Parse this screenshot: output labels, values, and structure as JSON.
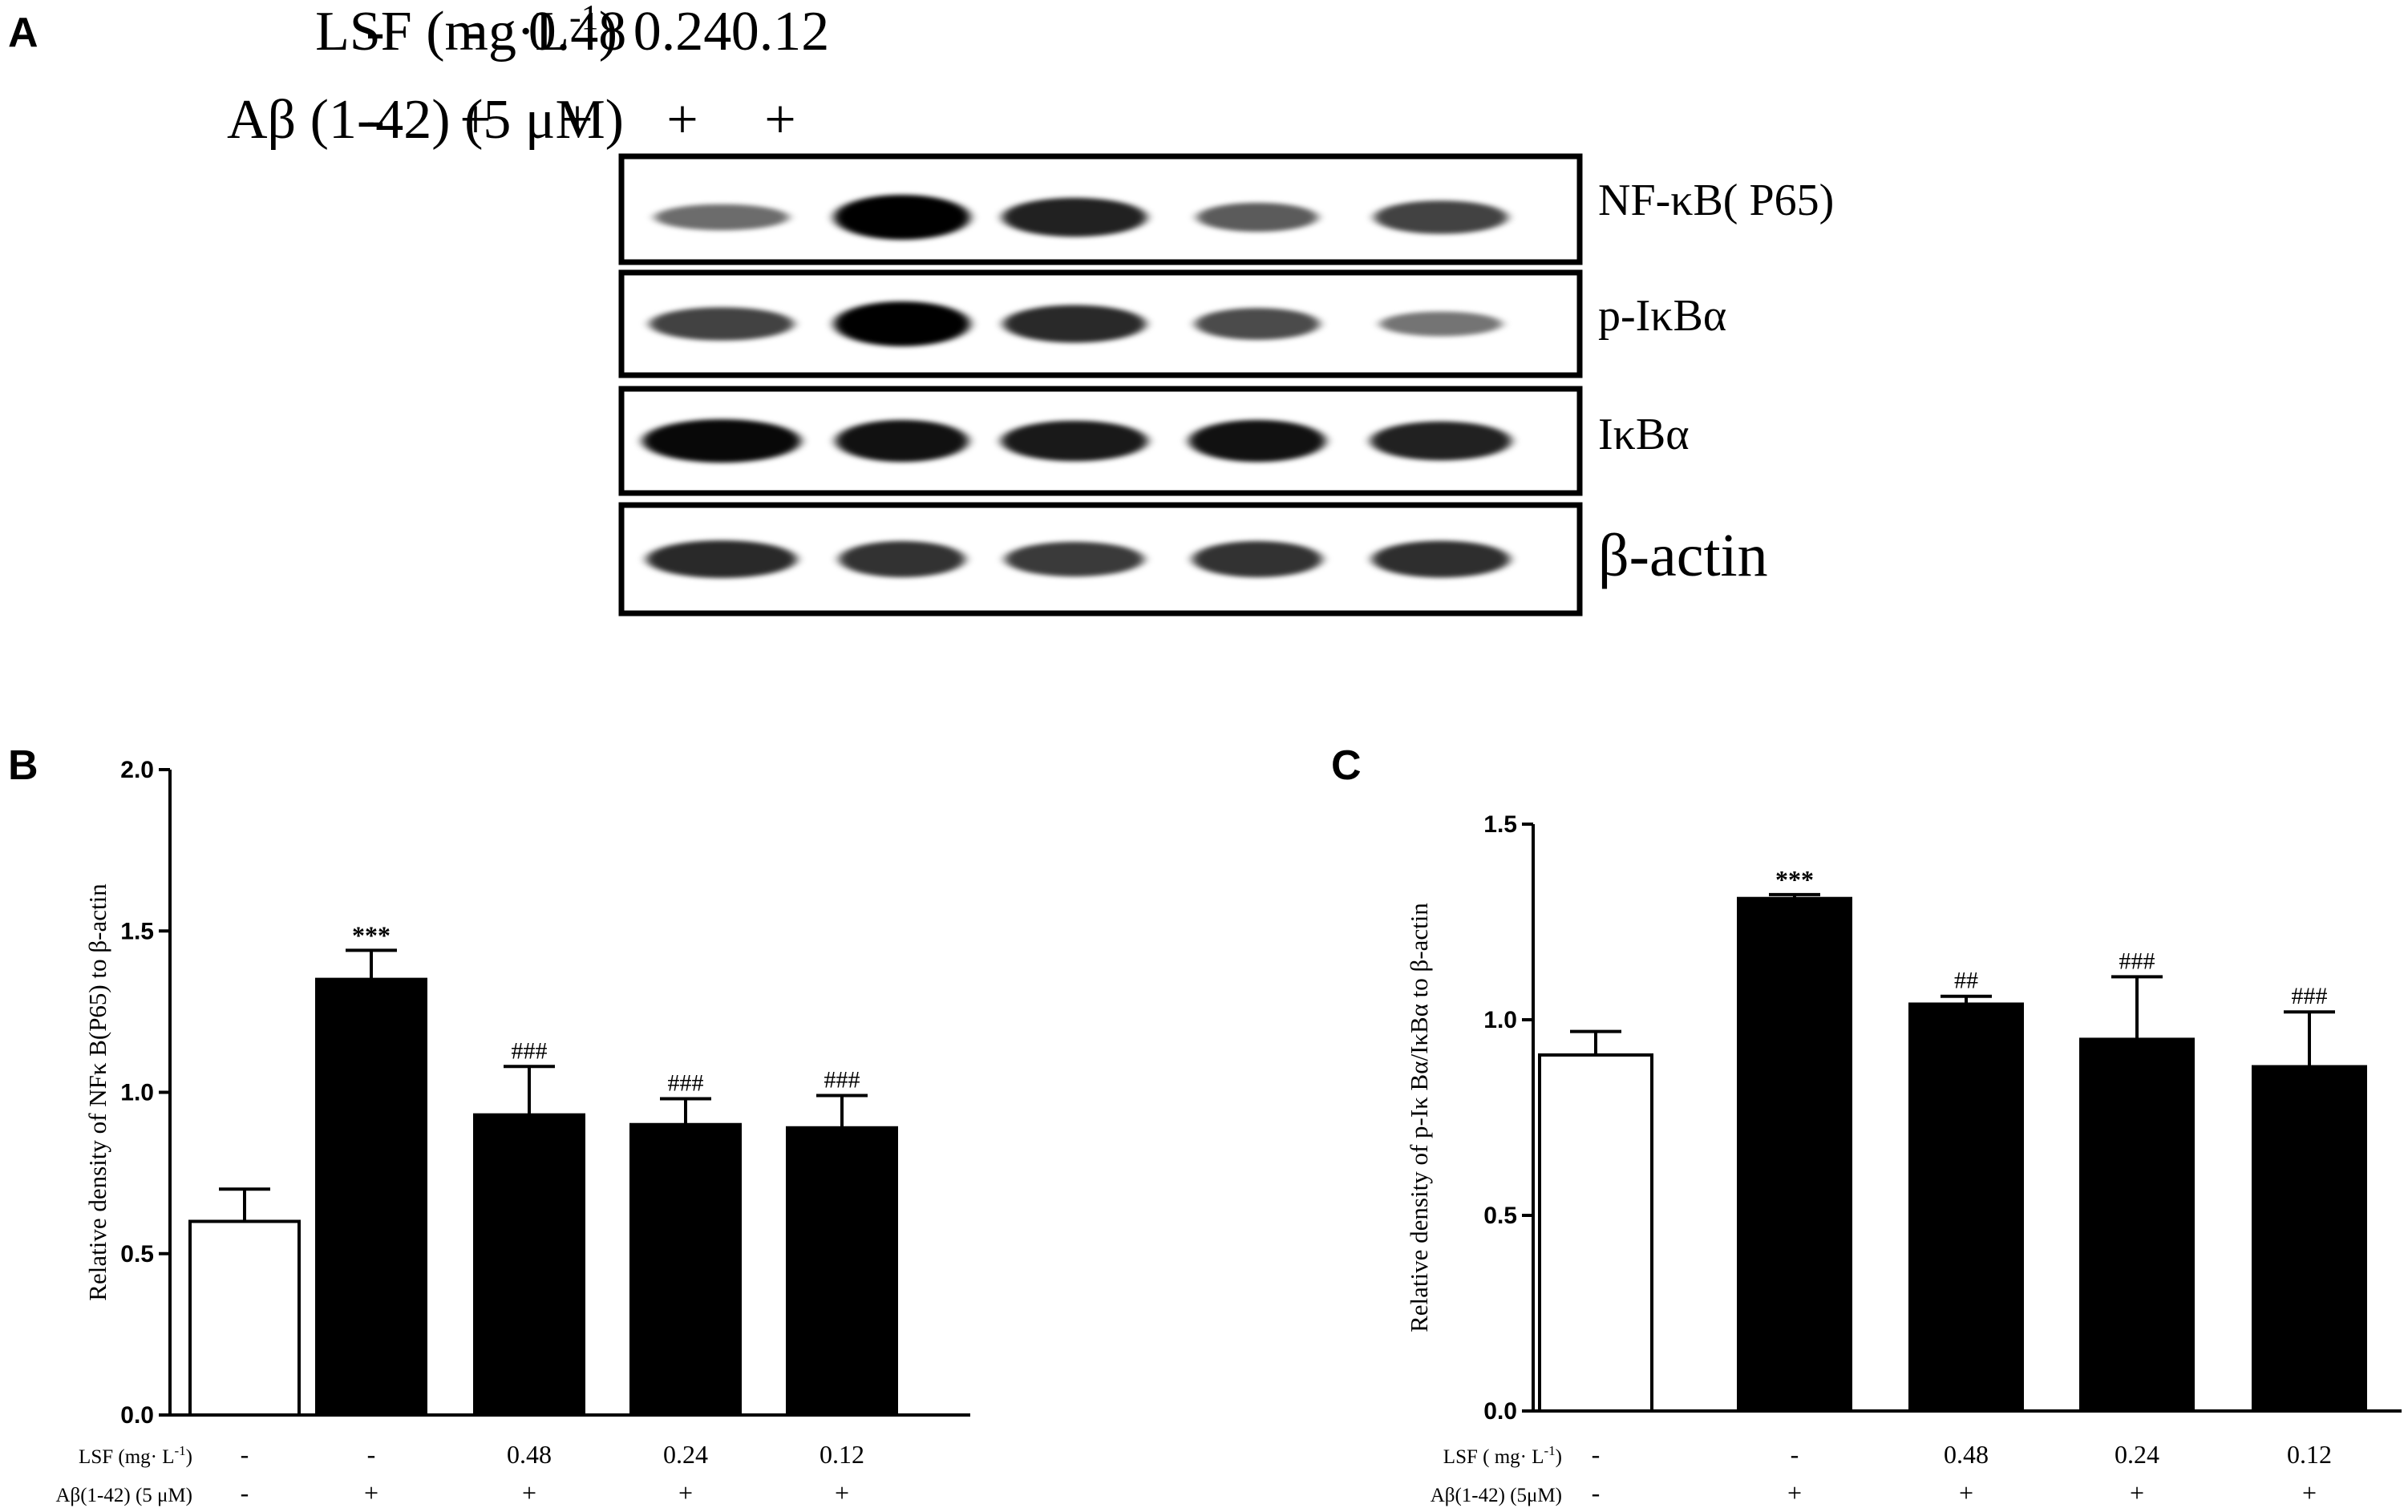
{
  "figure": {
    "panel_a": {
      "letter": "A",
      "lsf_label": "LSF (mg·L",
      "lsf_label_sup": "-1",
      "lsf_label_close": ")",
      "abeta_label": "Aβ (1-42) (5 μM)",
      "lsf_values": [
        "-",
        "-",
        "0.48",
        "0.24",
        "0.12"
      ],
      "abeta_values": [
        "-",
        "+",
        "+",
        "+",
        "+"
      ],
      "blots": [
        {
          "label": "NF-κB( P65)",
          "bands": [
            0.35,
            1.0,
            0.8,
            0.45,
            0.6
          ]
        },
        {
          "label": "p-IκBα",
          "bands": [
            0.6,
            1.0,
            0.75,
            0.55,
            0.3
          ]
        },
        {
          "label": "IκBα",
          "bands": [
            0.95,
            0.9,
            0.85,
            0.9,
            0.8
          ]
        },
        {
          "label": "β-actin",
          "bands": [
            0.75,
            0.7,
            0.65,
            0.7,
            0.72
          ]
        }
      ]
    },
    "panel_b": {
      "letter": "B",
      "ylabel": "Relative density of NFκ B(P65) to β-actin",
      "lsf_label": "LSF (mg· L",
      "lsf_label_sup": "-1",
      "lsf_label_close": ")",
      "abeta_label": "Aβ(1-42) (5 μM)"
    },
    "panel_c": {
      "letter": "C",
      "ylabel": "Relative density of p-Iκ Bα/IκBα  to β-actin",
      "lsf_label": "LSF ( mg· L",
      "lsf_label_sup": "-1",
      "lsf_label_close": ")",
      "abeta_label": "Aβ(1-42) (5μM)"
    }
  },
  "chart_data": [
    {
      "type": "bar",
      "panel": "B",
      "title": "",
      "ylabel": "Relative density of NFκ B(P65) to β-actin",
      "ylim": [
        0,
        2.0
      ],
      "yticks": [
        "0.0",
        "0.5",
        "1.0",
        "1.5",
        "2.0"
      ],
      "categories": [
        {
          "lsf": "-",
          "abeta": "-"
        },
        {
          "lsf": "-",
          "abeta": "+"
        },
        {
          "lsf": "0.48",
          "abeta": "+"
        },
        {
          "lsf": "0.24",
          "abeta": "+"
        },
        {
          "lsf": "0.12",
          "abeta": "+"
        }
      ],
      "values": [
        0.6,
        1.35,
        0.93,
        0.9,
        0.89
      ],
      "errors": [
        0.1,
        0.09,
        0.15,
        0.08,
        0.1
      ],
      "annotations": [
        "",
        "***",
        "###",
        "###",
        "###"
      ],
      "bar_fills": [
        "#ffffff",
        "#000000",
        "#000000",
        "#000000",
        "#000000"
      ],
      "grid": false
    },
    {
      "type": "bar",
      "panel": "C",
      "title": "",
      "ylabel": "Relative density of p-Iκ Bα/IκBα  to β-actin",
      "ylim": [
        0,
        1.5
      ],
      "yticks": [
        "0.0",
        "0.5",
        "1.0",
        "1.5"
      ],
      "categories": [
        {
          "lsf": "-",
          "abeta": "-"
        },
        {
          "lsf": "-",
          "abeta": "+"
        },
        {
          "lsf": "0.48",
          "abeta": "+"
        },
        {
          "lsf": "0.24",
          "abeta": "+"
        },
        {
          "lsf": "0.12",
          "abeta": "+"
        }
      ],
      "values": [
        0.91,
        1.31,
        1.04,
        0.95,
        0.88
      ],
      "errors": [
        0.06,
        0.01,
        0.02,
        0.16,
        0.14
      ],
      "annotations": [
        "",
        "***",
        "##",
        "###",
        "###"
      ],
      "bar_fills": [
        "#ffffff",
        "#000000",
        "#000000",
        "#000000",
        "#000000"
      ],
      "grid": false
    }
  ]
}
